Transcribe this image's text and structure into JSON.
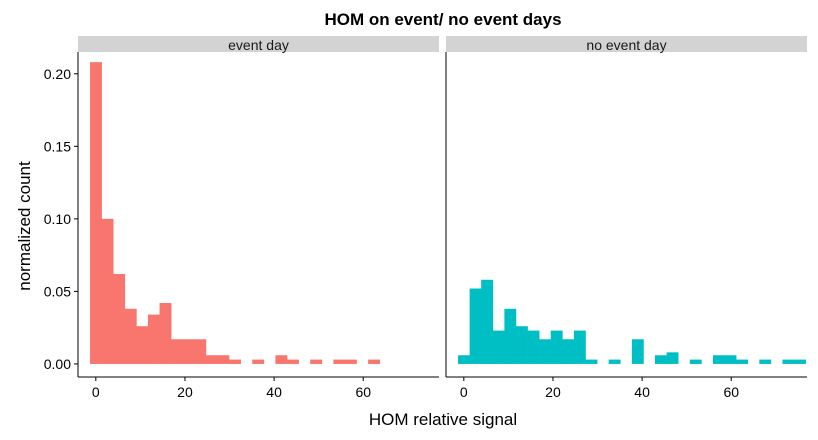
{
  "chart_data": {
    "type": "bar",
    "title": "HOM on event/ no event days",
    "xlabel": "HOM relative signal",
    "ylabel": "normalized count",
    "xlim": [
      -4,
      77
    ],
    "ylim": [
      -0.009,
      0.215
    ],
    "x_ticks": [
      "0",
      "20",
      "40",
      "60"
    ],
    "y_ticks": [
      "0.00",
      "0.05",
      "0.10",
      "0.15",
      "0.20"
    ],
    "bin_width": 2.6,
    "grid": false,
    "legend": "none",
    "panels": [
      {
        "name": "event day",
        "color": "#F8766D",
        "bins": [
          {
            "x": 0.0,
            "y": 0.208
          },
          {
            "x": 2.6,
            "y": 0.1
          },
          {
            "x": 5.2,
            "y": 0.062
          },
          {
            "x": 7.8,
            "y": 0.038
          },
          {
            "x": 10.4,
            "y": 0.026
          },
          {
            "x": 13.0,
            "y": 0.034
          },
          {
            "x": 15.6,
            "y": 0.042
          },
          {
            "x": 18.2,
            "y": 0.017
          },
          {
            "x": 20.8,
            "y": 0.017
          },
          {
            "x": 23.4,
            "y": 0.017
          },
          {
            "x": 26.0,
            "y": 0.006
          },
          {
            "x": 28.6,
            "y": 0.006
          },
          {
            "x": 31.2,
            "y": 0.003
          },
          {
            "x": 36.4,
            "y": 0.003
          },
          {
            "x": 41.6,
            "y": 0.006
          },
          {
            "x": 44.2,
            "y": 0.003
          },
          {
            "x": 49.4,
            "y": 0.003
          },
          {
            "x": 54.6,
            "y": 0.003
          },
          {
            "x": 57.2,
            "y": 0.003
          },
          {
            "x": 62.4,
            "y": 0.003
          }
        ]
      },
      {
        "name": "no event day",
        "color": "#00BFC4",
        "bins": [
          {
            "x": 0.0,
            "y": 0.006
          },
          {
            "x": 2.6,
            "y": 0.052
          },
          {
            "x": 5.2,
            "y": 0.058
          },
          {
            "x": 7.8,
            "y": 0.023
          },
          {
            "x": 10.4,
            "y": 0.038
          },
          {
            "x": 13.0,
            "y": 0.026
          },
          {
            "x": 15.6,
            "y": 0.023
          },
          {
            "x": 18.2,
            "y": 0.017
          },
          {
            "x": 20.8,
            "y": 0.023
          },
          {
            "x": 23.4,
            "y": 0.017
          },
          {
            "x": 26.0,
            "y": 0.023
          },
          {
            "x": 28.6,
            "y": 0.003
          },
          {
            "x": 33.8,
            "y": 0.003
          },
          {
            "x": 39.0,
            "y": 0.017
          },
          {
            "x": 44.2,
            "y": 0.006
          },
          {
            "x": 46.8,
            "y": 0.008
          },
          {
            "x": 52.0,
            "y": 0.003
          },
          {
            "x": 57.2,
            "y": 0.006
          },
          {
            "x": 59.8,
            "y": 0.006
          },
          {
            "x": 62.4,
            "y": 0.003
          },
          {
            "x": 67.6,
            "y": 0.003
          },
          {
            "x": 72.8,
            "y": 0.003
          },
          {
            "x": 75.4,
            "y": 0.003
          }
        ]
      }
    ]
  }
}
